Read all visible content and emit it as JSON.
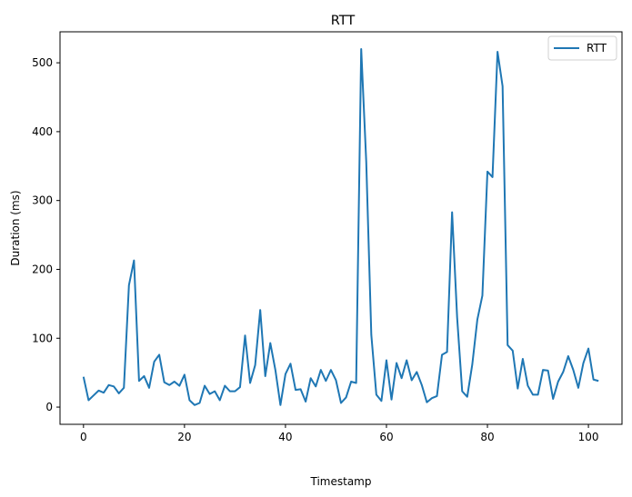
{
  "chart_data": {
    "type": "line",
    "title": "RTT",
    "xlabel": "Timestamp",
    "ylabel": "Duration (ms)",
    "xlim": [
      -4.65,
      106.65
    ],
    "ylim": [
      -25,
      545
    ],
    "xticks": [
      0,
      20,
      40,
      60,
      80,
      100
    ],
    "yticks": [
      0,
      100,
      200,
      300,
      400,
      500
    ],
    "grid": false,
    "legend": "top-right",
    "series": [
      {
        "name": "RTT",
        "color": "#1f77b4",
        "x": [
          0,
          1,
          2,
          3,
          4,
          5,
          6,
          7,
          8,
          9,
          10,
          11,
          12,
          13,
          14,
          15,
          16,
          17,
          18,
          19,
          20,
          21,
          22,
          23,
          24,
          25,
          26,
          27,
          28,
          29,
          30,
          31,
          32,
          33,
          34,
          35,
          36,
          37,
          38,
          39,
          40,
          41,
          42,
          43,
          44,
          45,
          46,
          47,
          48,
          49,
          50,
          51,
          52,
          53,
          54,
          55,
          56,
          57,
          58,
          59,
          60,
          61,
          62,
          63,
          64,
          65,
          66,
          67,
          68,
          69,
          70,
          71,
          72,
          73,
          74,
          75,
          76,
          77,
          78,
          79,
          80,
          81,
          82,
          83,
          84,
          85,
          86,
          87,
          88,
          89,
          90,
          91,
          92,
          93,
          94,
          95,
          96,
          97,
          98,
          99,
          100,
          101,
          102
        ],
        "values": [
          44,
          10,
          17,
          24,
          21,
          32,
          30,
          20,
          28,
          177,
          213,
          38,
          45,
          28,
          66,
          76,
          36,
          32,
          37,
          31,
          47,
          10,
          3,
          6,
          31,
          19,
          23,
          10,
          31,
          23,
          23,
          29,
          104,
          35,
          61,
          141,
          45,
          93,
          54,
          3,
          48,
          63,
          25,
          26,
          8,
          42,
          30,
          54,
          38,
          54,
          39,
          6,
          14,
          37,
          35,
          520,
          356,
          105,
          18,
          9,
          68,
          11,
          64,
          42,
          68,
          39,
          51,
          32,
          7,
          13,
          16,
          76,
          80,
          283,
          130,
          23,
          15,
          62,
          127,
          162,
          342,
          334,
          516,
          466,
          90,
          82,
          27,
          70,
          31,
          18,
          18,
          54,
          53,
          12,
          37,
          51,
          74,
          54,
          28,
          64,
          85,
          40,
          38
        ]
      }
    ]
  }
}
